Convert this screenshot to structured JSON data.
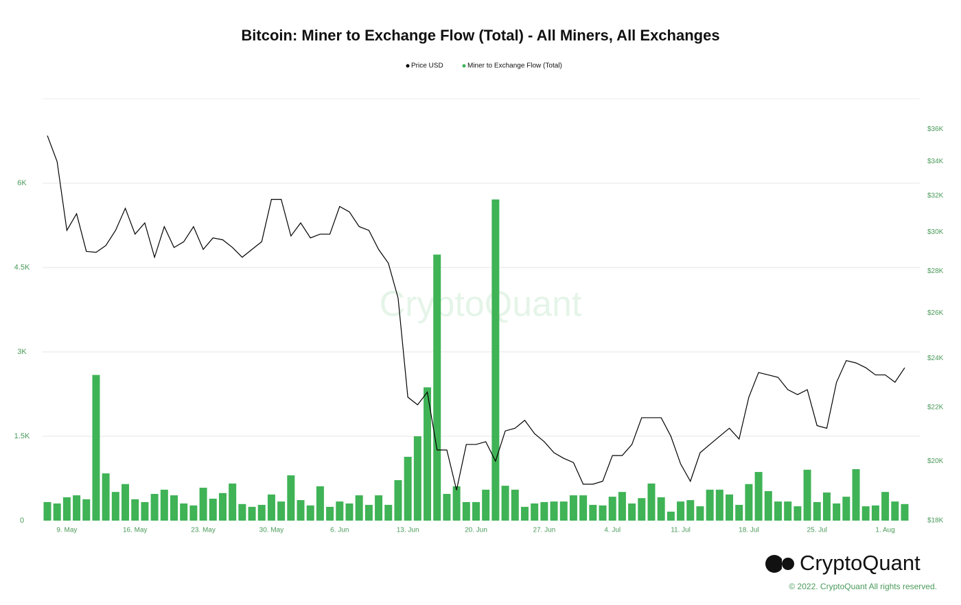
{
  "chart_data": {
    "type": "bar",
    "title": "Bitcoin: Miner to Exchange Flow (Total) - All Miners, All Exchanges",
    "watermark": "CryptoQuant",
    "logo": "CryptoQuant",
    "copyright": "© 2022. CryptoQuant All rights reserved.",
    "categories": [
      null,
      null,
      "9. May",
      null,
      null,
      null,
      null,
      null,
      null,
      "16. May",
      null,
      null,
      null,
      null,
      null,
      null,
      "23. May",
      null,
      null,
      null,
      null,
      null,
      null,
      "30. May",
      null,
      null,
      null,
      null,
      null,
      null,
      "6. Jun",
      null,
      null,
      null,
      null,
      null,
      null,
      "13. Jun",
      null,
      null,
      null,
      null,
      null,
      null,
      "20. Jun",
      null,
      null,
      null,
      null,
      null,
      null,
      "27. Jun",
      null,
      null,
      null,
      null,
      null,
      null,
      "4. Jul",
      null,
      null,
      null,
      null,
      null,
      null,
      "11. Jul",
      null,
      null,
      null,
      null,
      null,
      null,
      "18. Jul",
      null,
      null,
      null,
      null,
      null,
      null,
      "25. Jul",
      null,
      null,
      null,
      null,
      null,
      null,
      "1. Aug",
      null,
      null
    ],
    "series": [
      {
        "name": "Price USD",
        "type": "line",
        "axis": "y2",
        "color": "#000000",
        "values": [
          35600,
          34000,
          30100,
          31000,
          29000,
          28950,
          29300,
          30100,
          31300,
          29900,
          30500,
          28700,
          30300,
          29200,
          29500,
          30300,
          29100,
          29700,
          29600,
          29200,
          28700,
          29100,
          29500,
          31800,
          31800,
          29800,
          30500,
          29700,
          29900,
          29900,
          31400,
          31100,
          30300,
          30100,
          29100,
          28400,
          26700,
          22400,
          22100,
          22600,
          20400,
          20400,
          19000,
          20600,
          20600,
          20700,
          20000,
          21100,
          21200,
          21500,
          21000,
          20700,
          20300,
          20100,
          19950,
          19200,
          19200,
          19300,
          20200,
          20200,
          20600,
          21600,
          21600,
          21600,
          20900,
          19900,
          19300,
          20300,
          20600,
          20900,
          21200,
          20800,
          22400,
          23400,
          23300,
          23200,
          22700,
          22500,
          22700,
          21300,
          21200,
          23000,
          23900,
          23800,
          23600,
          23300,
          23300,
          23000,
          23600
        ]
      },
      {
        "name": "Miner to Exchange Flow (Total)",
        "type": "bar",
        "color": "#3fb356",
        "values": [
          330,
          305,
          415,
          450,
          380,
          2590,
          840,
          510,
          650,
          380,
          330,
          475,
          550,
          450,
          305,
          270,
          585,
          390,
          490,
          660,
          295,
          245,
          280,
          465,
          340,
          805,
          365,
          270,
          610,
          245,
          340,
          305,
          450,
          280,
          450,
          280,
          720,
          1135,
          1500,
          2370,
          4730,
          475,
          610,
          330,
          330,
          550,
          5710,
          620,
          550,
          245,
          305,
          330,
          340,
          340,
          450,
          450,
          280,
          270,
          425,
          510,
          305,
          400,
          660,
          415,
          160,
          340,
          365,
          255,
          550,
          550,
          465,
          280,
          650,
          865,
          525,
          340,
          340,
          255,
          905,
          330,
          500,
          305,
          425,
          915,
          255,
          270,
          510,
          340,
          295
        ]
      }
    ],
    "ylim": [
      0,
      7500
    ],
    "yticks": [
      0,
      {
        "value": 1500,
        "label": "1.5K"
      },
      {
        "value": 3000,
        "label": "3K"
      },
      {
        "value": 4500,
        "label": "4.5K"
      },
      {
        "value": 6000,
        "label": "6K"
      }
    ],
    "y2lim": [
      18000,
      38000
    ],
    "y2log": true,
    "y2ticks": [
      {
        "value": 18000,
        "label": "$18K"
      },
      {
        "value": 20000,
        "label": "$20K"
      },
      {
        "value": 22000,
        "label": "$22K"
      },
      {
        "value": 24000,
        "label": "$24K"
      },
      {
        "value": 26000,
        "label": "$26K"
      },
      {
        "value": 28000,
        "label": "$28K"
      },
      {
        "value": 30000,
        "label": "$30K"
      },
      {
        "value": 32000,
        "label": "$32K"
      },
      {
        "value": 34000,
        "label": "$34K"
      },
      {
        "value": 36000,
        "label": "$36K"
      }
    ],
    "grid": true,
    "axis_color": "#4a9a5a"
  }
}
